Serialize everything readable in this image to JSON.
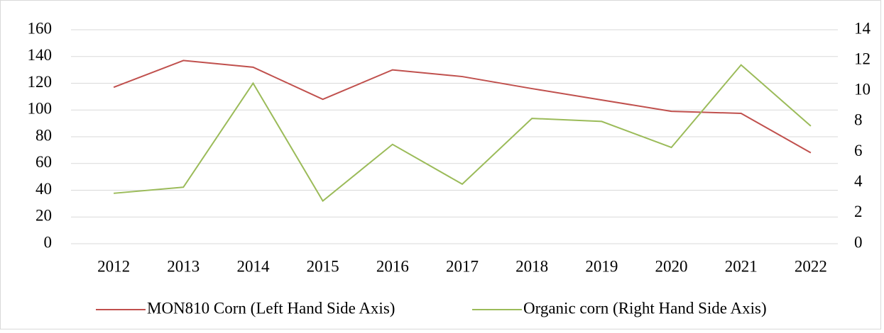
{
  "chart_data": {
    "type": "line",
    "categories": [
      "2012",
      "2013",
      "2014",
      "2015",
      "2016",
      "2017",
      "2018",
      "2019",
      "2020",
      "2021",
      "2022"
    ],
    "series": [
      {
        "name": "MON810 Corn (Left Hand Side Axis)",
        "color": "#c0504d",
        "values": [
          117,
          137,
          132,
          108,
          130,
          125,
          116,
          107.5,
          99,
          97.5,
          68
        ]
      },
      {
        "name": "Organic corn  (Right Hand Side Axis)",
        "color": "#9bbb59",
        "axis": "y2",
        "values": [
          3.3,
          3.7,
          10.5,
          2.8,
          6.5,
          3.9,
          8.2,
          8.0,
          6.3,
          11.7,
          7.7
        ]
      }
    ],
    "ylim": [
      0,
      160
    ],
    "yticks": [
      0,
      20,
      40,
      60,
      80,
      100,
      120,
      140,
      160
    ],
    "y2lim": [
      0,
      14
    ],
    "y2ticks": [
      0,
      2,
      4,
      6,
      8,
      10,
      12,
      14
    ],
    "grid": true,
    "legend": "bottom"
  }
}
